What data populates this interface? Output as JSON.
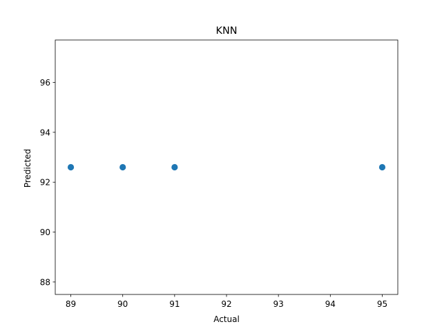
{
  "chart_data": {
    "type": "scatter",
    "title": "KNN",
    "xlabel": "Actual",
    "ylabel": "Predicted",
    "xlim": [
      88.7,
      95.3
    ],
    "ylim": [
      87.5,
      97.7
    ],
    "xticks": [
      89,
      90,
      91,
      92,
      93,
      94,
      95
    ],
    "yticks": [
      88,
      90,
      92,
      94,
      96
    ],
    "grid": false,
    "series": [
      {
        "color": "#1f77b4",
        "x": [
          89,
          90,
          91,
          95
        ],
        "y": [
          92.6,
          92.6,
          92.6,
          92.6
        ]
      }
    ]
  }
}
